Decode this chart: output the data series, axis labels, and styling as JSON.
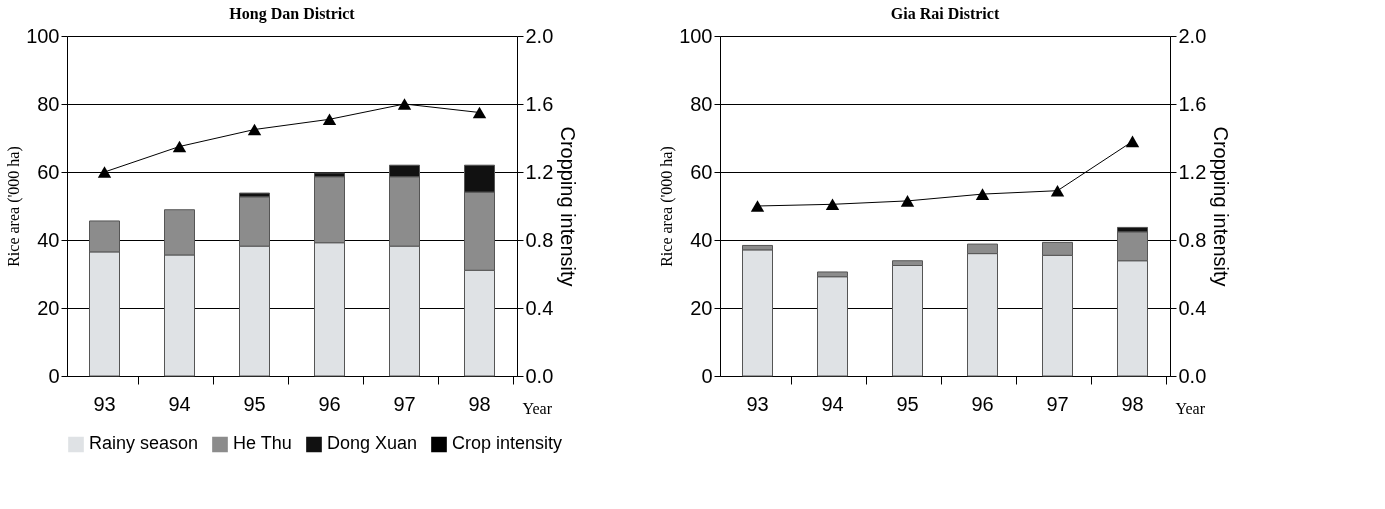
{
  "chart_data": [
    {
      "type": "bar",
      "stacked": true,
      "title": "Hong Dan District",
      "xlabel": "Year",
      "ylabel": "Rice area ('000 ha)",
      "y2label": "Cropping  intensity",
      "categories": [
        "93",
        "94",
        "95",
        "96",
        "97",
        "98"
      ],
      "series": [
        {
          "name": "Rainy season",
          "color": "#dfe2e5",
          "values": [
            36.5,
            35.6,
            38.2,
            39.2,
            38.2,
            31.1
          ]
        },
        {
          "name": "He Thu",
          "color": "#8c8c8c",
          "values": [
            9.1,
            13.3,
            14.5,
            19.4,
            20.4,
            23.0
          ]
        },
        {
          "name": "Dong Xuan",
          "color": "#111111",
          "values": [
            null,
            null,
            1.1,
            1.1,
            3.4,
            7.9
          ]
        },
        {
          "name": "Crop intensity",
          "type": "line",
          "axis": "y2",
          "color": "#000000",
          "values": [
            1.2,
            1.35,
            1.45,
            1.51,
            1.6,
            1.55
          ]
        }
      ],
      "ylim": [
        0,
        100
      ],
      "yticks": [
        0,
        20,
        40,
        60,
        80,
        100
      ],
      "y2lim": [
        0,
        2
      ],
      "y2ticks": [
        {
          "value": 0,
          "label": "0.0"
        },
        {
          "value": 0.4,
          "label": "0.4"
        },
        {
          "value": 0.8,
          "label": "0.8"
        },
        {
          "value": 1.2,
          "label": "1.2"
        },
        {
          "value": 1.6,
          "label": "1.6"
        },
        {
          "value": 2,
          "label": "2.0"
        }
      ],
      "grid": "y",
      "marker": "triangle",
      "legend": "bottom"
    },
    {
      "type": "bar",
      "stacked": true,
      "title": "Gia Rai District",
      "xlabel": "Year",
      "ylabel": "Rice area ('000 ha)",
      "y2label": "Cropping  intensity",
      "categories": [
        "93",
        "94",
        "95",
        "96",
        "97",
        "98"
      ],
      "series": [
        {
          "name": "Rainy season",
          "color": "#dfe2e5",
          "values": [
            37.1,
            29.2,
            32.5,
            36.0,
            35.5,
            33.9
          ]
        },
        {
          "name": "He Thu",
          "color": "#8c8c8c",
          "values": [
            1.3,
            1.4,
            1.4,
            2.8,
            3.8,
            8.5
          ]
        },
        {
          "name": "Dong Xuan",
          "color": "#111111",
          "values": [
            null,
            null,
            null,
            null,
            null,
            1.3
          ]
        },
        {
          "name": "Crop intensity",
          "type": "line",
          "axis": "y2",
          "color": "#000000",
          "values": [
            1.0,
            1.01,
            1.03,
            1.07,
            1.09,
            1.38
          ]
        }
      ],
      "ylim": [
        0,
        100
      ],
      "yticks": [
        0,
        20,
        40,
        60,
        80,
        100
      ],
      "y2lim": [
        0,
        2
      ],
      "y2ticks": [
        {
          "value": 0,
          "label": "0.0"
        },
        {
          "value": 0.4,
          "label": "0.4"
        },
        {
          "value": 0.8,
          "label": "0.8"
        },
        {
          "value": 1.2,
          "label": "1.2"
        },
        {
          "value": 1.6,
          "label": "1.6"
        },
        {
          "value": 2,
          "label": "2.0"
        }
      ],
      "grid": "y",
      "marker": "triangle",
      "legend": "bottom"
    }
  ]
}
